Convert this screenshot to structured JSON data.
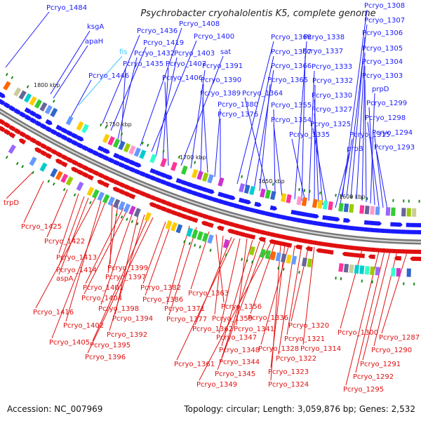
{
  "title": "Psychrobacter cryohalolentis K5, complete genome",
  "accession": "Accession: NC_007969",
  "topology": "Topology: circular; Length: 3,059,876 bp; Genes: 2,532",
  "ticks": [
    "1800 kbp",
    "1750 kbp",
    "1700 kbp",
    "1650 kbp",
    "1600 kbp"
  ],
  "genes_top": [
    "Pcryo_1484",
    "ksgA",
    "apaH",
    "fis",
    "Pcryo_1446",
    "Pcryo_1436",
    "Pcryo_1419",
    "Pcryo_1432",
    "Pcryo_1435",
    "Pcryo_1408",
    "Pcryo_1400",
    "Pcryo_1403",
    "Pcryo_1407",
    "Pcryo_1406",
    "sat",
    "Pcryo_1391",
    "Pcryo_1390",
    "Pcryo_1389",
    "Pcryo_1380",
    "Pcryo_1376",
    "Pcryo_1368",
    "Pcryo_1367",
    "Pcryo_1366",
    "Pcryo_1365",
    "Pcryo_1364",
    "Pcryo_1355",
    "Pcryo_1354",
    "Pcryo_1338",
    "Pcryo_1337",
    "Pcryo_1333",
    "Pcryo_1332",
    "Pcryo_1330",
    "Pcryo_1327",
    "Pcryo_1325",
    "Pcryo_1335",
    "Pcryo_1315",
    "prpB",
    "Pcryo_1308",
    "Pcryo_1307",
    "Pcryo_1306",
    "Pcryo_1305",
    "Pcryo_1304",
    "Pcryo_1303",
    "prpD",
    "Pcryo_1299",
    "Pcryo_1298",
    "Pcryo_1294",
    "Pcryo_1293"
  ],
  "genes_bottom": [
    "trpD",
    "Pcryo_1425",
    "Pcryo_1422",
    "Pcryo_1413",
    "Pcryo_1414",
    "aspA",
    "Pcryo_1399",
    "Pcryo_1397",
    "Pcryo_1401",
    "Pcryo_1404",
    "Pcryo_1382",
    "Pcryo_1386",
    "Pcryo_1398",
    "Pcryo_1416",
    "Pcryo_1394",
    "Pcryo_1402",
    "Pcryo_1392",
    "Pcryo_1405",
    "Pcryo_1395",
    "Pcryo_1396",
    "Pcryo_1371",
    "Pcryo_1377",
    "Pcryo_1363",
    "Pcryo_1356",
    "Pcryo_1359",
    "Pcryo_1362",
    "Pcryo_1336",
    "Pcryo_1341",
    "Pcryo_1347",
    "Pcryo_1348",
    "Pcryo_1344",
    "Pcryo_1345",
    "Pcryo_1349",
    "Pcryo_1361",
    "Pcryo_1320",
    "Pcryo_1321",
    "Pcryo_1328",
    "Pcryo_1314",
    "Pcryo_1322",
    "Pcryo_1323",
    "Pcryo_1324",
    "Pcryo_1300",
    "Pcryo_1287",
    "Pcryo_1290",
    "Pcryo_1291",
    "Pcryo_1292",
    "Pcryo_1295"
  ],
  "colors": {
    "forward": "#1a1aff",
    "reverse": "#e01010",
    "special": "#40c8ff",
    "backbone": "#888888",
    "gc_mark": "#1a8a1a"
  }
}
